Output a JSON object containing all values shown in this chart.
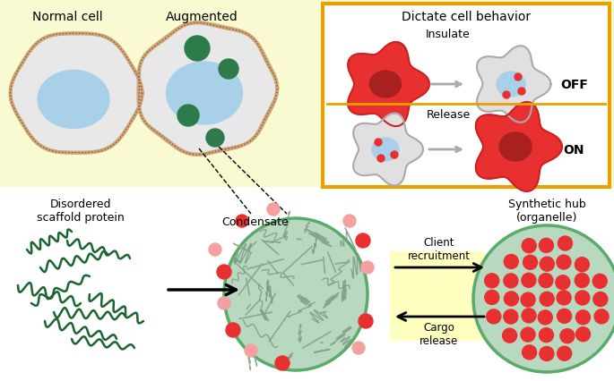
{
  "bg_top": "#fafad2",
  "bg_white": "#ffffff",
  "cell_body": "#e8e8e8",
  "cell_border": "#d4a080",
  "nucleus_blue": "#a8d0e8",
  "green_condensate": "#2d7a4a",
  "green_organelle_fill": "#b8d8c0",
  "green_organelle_border": "#5aaa6a",
  "red_fill": "#e83030",
  "red_dark": "#a82020",
  "salmon_pink": "#f4a0a0",
  "pink_light": "#f8c0c0",
  "orange_border": "#e8a000",
  "arrow_color": "#555555",
  "text_color": "#000000",
  "yellow_box": "#ffffc0",
  "title_normal_cell": "Normal cell",
  "title_augmented": "Augmented",
  "title_dictate": "Dictate cell behavior",
  "label_insulate": "Insulate",
  "label_off": "OFF",
  "label_release": "Release",
  "label_on": "ON",
  "label_disordered": "Disordered\nscaffold protein",
  "label_condensate": "Condensate",
  "label_client": "Client\nrecruitment",
  "label_cargo": "Cargo\nrelease",
  "label_synthetic": "Synthetic hub\n(organelle)"
}
